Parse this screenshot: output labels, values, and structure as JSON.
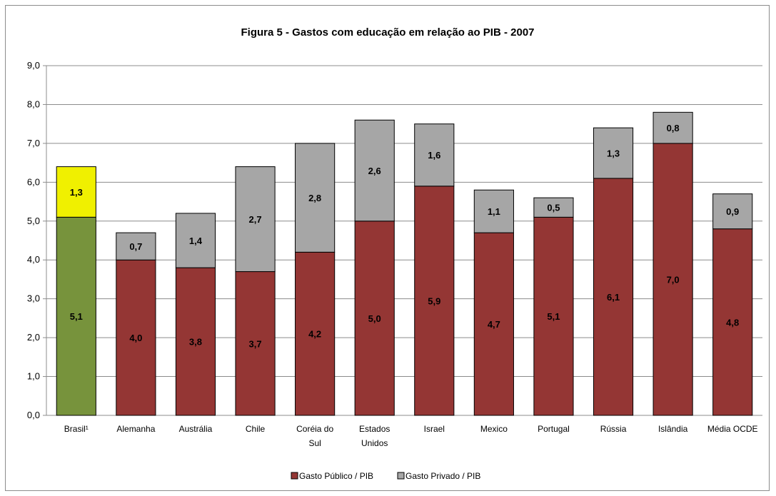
{
  "chart_data": {
    "type": "bar",
    "stacked": true,
    "title": "Figura 5 - Gastos com educação em relação ao PIB - 2007",
    "xlabel": "",
    "ylabel": "",
    "ylim": [
      0,
      9
    ],
    "ytick_labels": [
      "0,0",
      "1,0",
      "2,0",
      "3,0",
      "4,0",
      "5,0",
      "6,0",
      "7,0",
      "8,0",
      "9,0"
    ],
    "grid": true,
    "legend_position": "bottom",
    "categories": [
      [
        "Brasil¹"
      ],
      [
        "Alemanha"
      ],
      [
        "Austrália"
      ],
      [
        "Chile"
      ],
      [
        "Coréia do",
        "Sul"
      ],
      [
        "Estados",
        "Unidos"
      ],
      [
        "Israel"
      ],
      [
        "Mexico"
      ],
      [
        "Portugal"
      ],
      [
        "Rússia"
      ],
      [
        "Islândia"
      ],
      [
        "Média OCDE"
      ]
    ],
    "series": [
      {
        "name": "Gasto Público / PIB",
        "color": "#943634",
        "values": [
          5.1,
          4.0,
          3.8,
          3.7,
          4.2,
          5.0,
          5.9,
          4.7,
          5.1,
          6.1,
          7.0,
          4.8
        ],
        "labels": [
          "5,1",
          "4,0",
          "3,8",
          "3,7",
          "4,2",
          "5,0",
          "5,9",
          "4,7",
          "5,1",
          "6,1",
          "7,0",
          "4,8"
        ]
      },
      {
        "name": "Gasto Privado / PIB",
        "color": "#a6a6a6",
        "values": [
          1.3,
          0.7,
          1.4,
          2.7,
          2.8,
          2.6,
          1.6,
          1.1,
          0.5,
          1.3,
          0.8,
          0.9
        ],
        "labels": [
          "1,3",
          "0,7",
          "1,4",
          "2,7",
          "2,8",
          "2,6",
          "1,6",
          "1,1",
          "0,5",
          "1,3",
          "0,8",
          "0,9"
        ]
      }
    ],
    "highlight": {
      "category_index": 0,
      "colors": [
        "#77933c",
        "#f0f000"
      ]
    }
  }
}
